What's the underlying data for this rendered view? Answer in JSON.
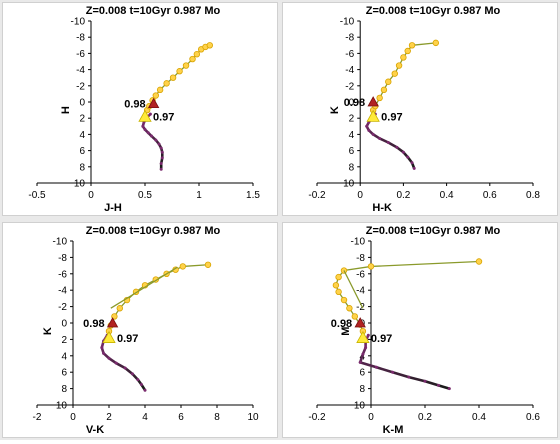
{
  "colors": {
    "track": "#8a9a2b",
    "marker_fill": "#ffd24a",
    "marker_edge": "#d9a400",
    "upper_rgb": "#7b2b6e",
    "lower_rgb": "#1c1c1c",
    "triangle_red": "#b22222",
    "triangle_yellow": "#ffea3a",
    "axis": "#000000"
  },
  "chart_data": [
    {
      "type": "scatter",
      "title": "Z=0.008  t=10Gyr 0.987 Mo",
      "xlabel": "J-H",
      "ylabel": "H",
      "xlim": [
        -0.5,
        1.5
      ],
      "ylim": [
        10,
        -10
      ],
      "xticks": [
        "-0.5",
        "0",
        "0.5",
        "1",
        "1.5"
      ],
      "xtick_values": [
        -0.5,
        0,
        0.5,
        1,
        1.5
      ],
      "yticks": [
        "-10",
        "-8",
        "-6",
        "-4",
        "-2",
        "0",
        "2",
        "4",
        "6",
        "8",
        "10"
      ],
      "ytick_values": [
        -10,
        -8,
        -6,
        -4,
        -2,
        0,
        2,
        4,
        6,
        8,
        10
      ],
      "annotations": [
        {
          "text": "0.98",
          "x": 0.58,
          "y": 0.2,
          "marker": "red-triangle"
        },
        {
          "text": "0.97",
          "x": 0.5,
          "y": 1.8,
          "marker": "yellow-triangle"
        }
      ],
      "series": [
        {
          "x": [
            0.55,
            0.51,
            0.49,
            0.48,
            0.5,
            0.53,
            0.56,
            0.6,
            0.63,
            0.65,
            0.66,
            0.66,
            0.65,
            0.65
          ],
          "y": [
            1.5,
            2.0,
            2.5,
            3.0,
            3.4,
            3.8,
            4.2,
            4.7,
            5.2,
            5.7,
            6.2,
            6.9,
            7.6,
            8.3
          ]
        },
        {
          "x": [
            0.52,
            0.54,
            0.57,
            0.6,
            0.64,
            0.7,
            0.76,
            0.82,
            0.88,
            0.94,
            0.98,
            1.02,
            1.06,
            1.1
          ],
          "y": [
            1.0,
            0.5,
            -0.2,
            -0.8,
            -1.5,
            -2.3,
            -3.0,
            -3.8,
            -4.5,
            -5.3,
            -5.9,
            -6.5,
            -6.8,
            -7.0
          ]
        }
      ]
    },
    {
      "type": "scatter",
      "title": "Z=0.008  t=10Gyr 0.987 Mo",
      "xlabel": "H-K",
      "ylabel": "K",
      "xlim": [
        -0.2,
        0.8
      ],
      "ylim": [
        10,
        -10
      ],
      "xticks": [
        "-0.2",
        "0",
        "0.2",
        "0.4",
        "0.6",
        "0.8"
      ],
      "xtick_values": [
        -0.2,
        0,
        0.2,
        0.4,
        0.6,
        0.8
      ],
      "yticks": [
        "-10",
        "-8",
        "-6",
        "-4",
        "-2",
        "0",
        "2",
        "4",
        "6",
        "8",
        "10"
      ],
      "ytick_values": [
        -10,
        -8,
        -6,
        -4,
        -2,
        0,
        2,
        4,
        6,
        8,
        10
      ],
      "annotations": [
        {
          "text": "0.98",
          "x": 0.06,
          "y": 0.0,
          "marker": "red-triangle"
        },
        {
          "text": "0.97",
          "x": 0.06,
          "y": 1.8,
          "marker": "yellow-triangle"
        }
      ],
      "series": [
        {
          "x": [
            0.07,
            0.05,
            0.04,
            0.03,
            0.04,
            0.06,
            0.09,
            0.13,
            0.17,
            0.2,
            0.22,
            0.24,
            0.25
          ],
          "y": [
            1.5,
            2.0,
            2.5,
            3.0,
            3.5,
            4.0,
            4.5,
            5.0,
            5.6,
            6.2,
            6.8,
            7.5,
            8.2
          ]
        },
        {
          "x": [
            0.06,
            0.07,
            0.09,
            0.11,
            0.13,
            0.16,
            0.18,
            0.2,
            0.22,
            0.24,
            0.35
          ],
          "y": [
            1.0,
            0.5,
            -0.5,
            -1.5,
            -2.5,
            -3.5,
            -4.5,
            -5.5,
            -6.3,
            -7.0,
            -7.3
          ]
        }
      ]
    },
    {
      "type": "scatter",
      "title": "Z=0.008  t=10Gyr 0.987 Mo",
      "xlabel": "V-K",
      "ylabel": "K",
      "xlim": [
        -2,
        10
      ],
      "ylim": [
        10,
        -10
      ],
      "xticks": [
        "-2",
        "0",
        "2",
        "4",
        "6",
        "8",
        "10"
      ],
      "xtick_values": [
        -2,
        0,
        2,
        4,
        6,
        8,
        10
      ],
      "yticks": [
        "-10",
        "-8",
        "-6",
        "-4",
        "-2",
        "0",
        "2",
        "4",
        "6",
        "8",
        "10"
      ],
      "ytick_values": [
        -10,
        -8,
        -6,
        -4,
        -2,
        0,
        2,
        4,
        6,
        8,
        10
      ],
      "annotations": [
        {
          "text": "0.98",
          "x": 2.2,
          "y": 0.0,
          "marker": "red-triangle"
        },
        {
          "text": "0.97",
          "x": 2.0,
          "y": 1.8,
          "marker": "yellow-triangle"
        }
      ],
      "series": [
        {
          "x": [
            1.9,
            1.7,
            1.6,
            1.7,
            2.0,
            2.4,
            2.9,
            3.3,
            3.6,
            3.8,
            4.0
          ],
          "y": [
            1.5,
            2.2,
            3.0,
            3.7,
            4.3,
            4.9,
            5.5,
            6.2,
            6.9,
            7.5,
            8.2
          ]
        },
        {
          "x": [
            2.0,
            2.1,
            2.3,
            2.6,
            3.0,
            3.5,
            4.0,
            4.6,
            5.2,
            5.7,
            6.1,
            7.5
          ],
          "y": [
            1.0,
            0.3,
            -0.8,
            -1.8,
            -2.8,
            -3.8,
            -4.6,
            -5.3,
            -6.0,
            -6.5,
            -6.9,
            -7.1
          ]
        },
        {
          "x": [
            2.1,
            5.8
          ],
          "y": [
            -1.8,
            -6.8
          ]
        }
      ]
    },
    {
      "type": "scatter",
      "title": "Z=0.008  t=10Gyr 0.987 Mo",
      "xlabel": "K-M",
      "ylabel": "M",
      "xlim": [
        -0.2,
        0.6
      ],
      "ylim": [
        10,
        -10
      ],
      "xticks": [
        "-0.2",
        "0",
        "0.2",
        "0.4",
        "0.6"
      ],
      "xtick_values": [
        -0.2,
        0,
        0.2,
        0.4,
        0.6
      ],
      "yticks": [
        "-10",
        "-8",
        "-6",
        "-4",
        "-2",
        "0",
        "2",
        "4",
        "6",
        "8",
        "10"
      ],
      "ytick_values": [
        -10,
        -8,
        -6,
        -4,
        -2,
        0,
        2,
        4,
        6,
        8,
        10
      ],
      "annotations": [
        {
          "text": "0.98",
          "x": -0.04,
          "y": 0.0,
          "marker": "red-triangle"
        },
        {
          "text": "0.97",
          "x": -0.03,
          "y": 1.8,
          "marker": "yellow-triangle"
        }
      ],
      "series": [
        {
          "x": [
            -0.01,
            -0.02,
            -0.02,
            -0.03,
            -0.04,
            0.02,
            0.08,
            0.14,
            0.2,
            0.25,
            0.29
          ],
          "y": [
            1.5,
            2.2,
            3.0,
            3.8,
            4.8,
            5.4,
            6.0,
            6.6,
            7.1,
            7.6,
            8.0
          ]
        },
        {
          "x": [
            -0.03,
            -0.04,
            -0.06,
            -0.08,
            -0.1,
            -0.12,
            -0.13,
            -0.12,
            -0.1,
            0.0,
            0.4
          ],
          "y": [
            1.0,
            0.2,
            -0.8,
            -1.8,
            -2.8,
            -3.8,
            -4.6,
            -5.6,
            -6.4,
            -6.9,
            -7.5
          ]
        },
        {
          "x": [
            -0.1,
            -0.03
          ],
          "y": [
            -6.4,
            -1.8
          ]
        }
      ]
    }
  ]
}
